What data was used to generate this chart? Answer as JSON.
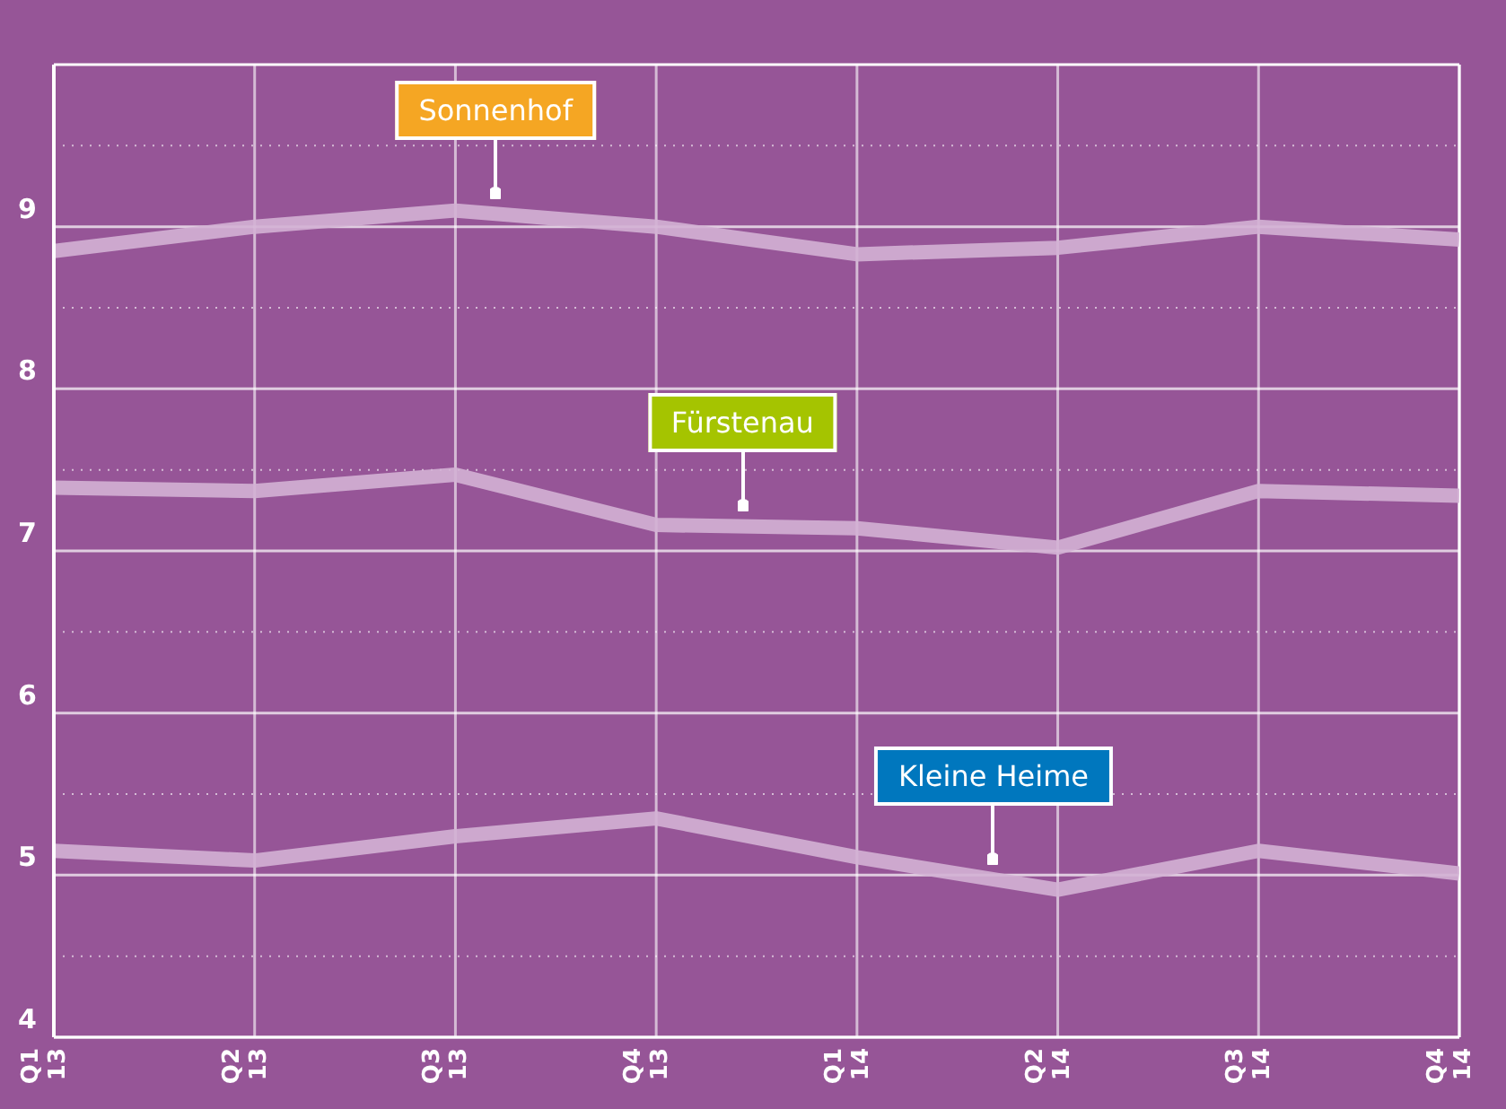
{
  "chart_data": {
    "type": "line",
    "categories": [
      "Q1 13",
      "Q2 13",
      "Q3 13",
      "Q4 13",
      "Q1 14",
      "Q2 14",
      "Q3 14",
      "Q4 14"
    ],
    "series": [
      {
        "name": "Sonnenhof",
        "color": "#d3b1d4",
        "values": [
          8.85,
          9.0,
          9.1,
          9.0,
          8.83,
          8.87,
          9.0,
          8.92
        ]
      },
      {
        "name": "Fürstenau",
        "color": "#d3b1d4",
        "values": [
          7.39,
          7.37,
          7.47,
          7.16,
          7.14,
          7.02,
          7.37,
          7.34
        ]
      },
      {
        "name": "Kleine Heime",
        "color": "#d3b1d4",
        "values": [
          5.15,
          5.09,
          5.24,
          5.35,
          5.11,
          4.91,
          5.15,
          5.01
        ]
      }
    ],
    "ylim": [
      4,
      10
    ],
    "yticks": [
      4,
      {
        "value": 4.5,
        "label": null
      },
      5,
      {
        "value": 5.5,
        "label": null
      },
      6,
      {
        "value": 6.5,
        "label": null
      },
      7,
      {
        "value": 7.5,
        "label": null
      },
      8,
      {
        "value": 8.5,
        "label": null
      },
      9,
      {
        "value": 9.5,
        "label": null
      }
    ],
    "grid": true,
    "marker": "none",
    "line_style": "solid"
  }
}
